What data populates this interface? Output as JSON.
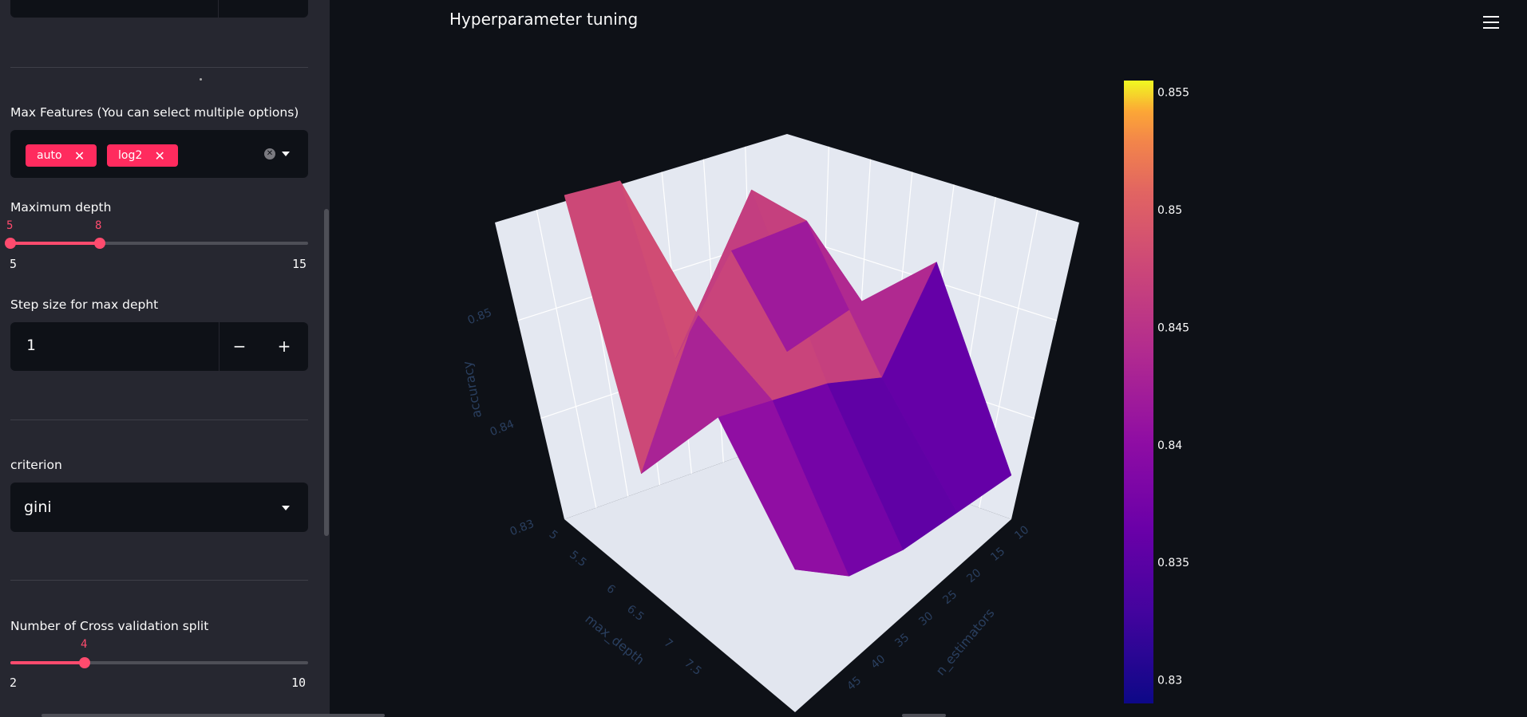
{
  "sidebar": {
    "max_features": {
      "label": "Max Features (You can select multiple options)",
      "selected": [
        "auto",
        "log2"
      ],
      "remove_glyph": "✕"
    },
    "max_depth": {
      "label": "Maximum depth",
      "min": "5",
      "max": "15",
      "low": "5",
      "high": "8"
    },
    "step_size": {
      "label": "Step size for max depht",
      "value": "1",
      "minus": "−",
      "plus": "+"
    },
    "criterion": {
      "label": "criterion",
      "value": "gini"
    },
    "cv_split": {
      "label": "Number of Cross validation split",
      "min": "2",
      "max": "10",
      "value": "4"
    }
  },
  "main": {
    "title": "Hyperparameter tuning",
    "menu_icon": "hamburger-menu-icon"
  },
  "chart_data": {
    "type": "surface",
    "colorscale": "plasma",
    "zaxis_title": "accuracy",
    "xaxis_title": "max_depth",
    "yaxis_title": "n_estimators",
    "xaxis_ticks": [
      "5",
      "5.5",
      "6",
      "6.5",
      "7",
      "7.5"
    ],
    "yaxis_ticks": [
      "10",
      "15",
      "20",
      "25",
      "30",
      "35",
      "40",
      "45"
    ],
    "zaxis_ticks": [
      "0.83",
      "0.84",
      "0.85"
    ],
    "colorbar_ticks": [
      "0.83",
      "0.835",
      "0.84",
      "0.845",
      "0.85",
      "0.855"
    ],
    "colorbar_range": [
      0.829,
      0.8555
    ],
    "max_depth": [
      5,
      6,
      7,
      8
    ],
    "n_estimators": [
      10,
      20,
      30,
      40,
      50
    ],
    "accuracy": [
      [
        0.8545,
        0.835,
        0.846,
        0.838
      ],
      [
        0.854,
        0.847,
        0.844,
        0.833
      ],
      [
        0.836,
        0.8555,
        0.842,
        0.831
      ],
      [
        0.844,
        0.85,
        0.839,
        0.83
      ],
      [
        0.833,
        0.84,
        0.846,
        0.829
      ]
    ]
  }
}
